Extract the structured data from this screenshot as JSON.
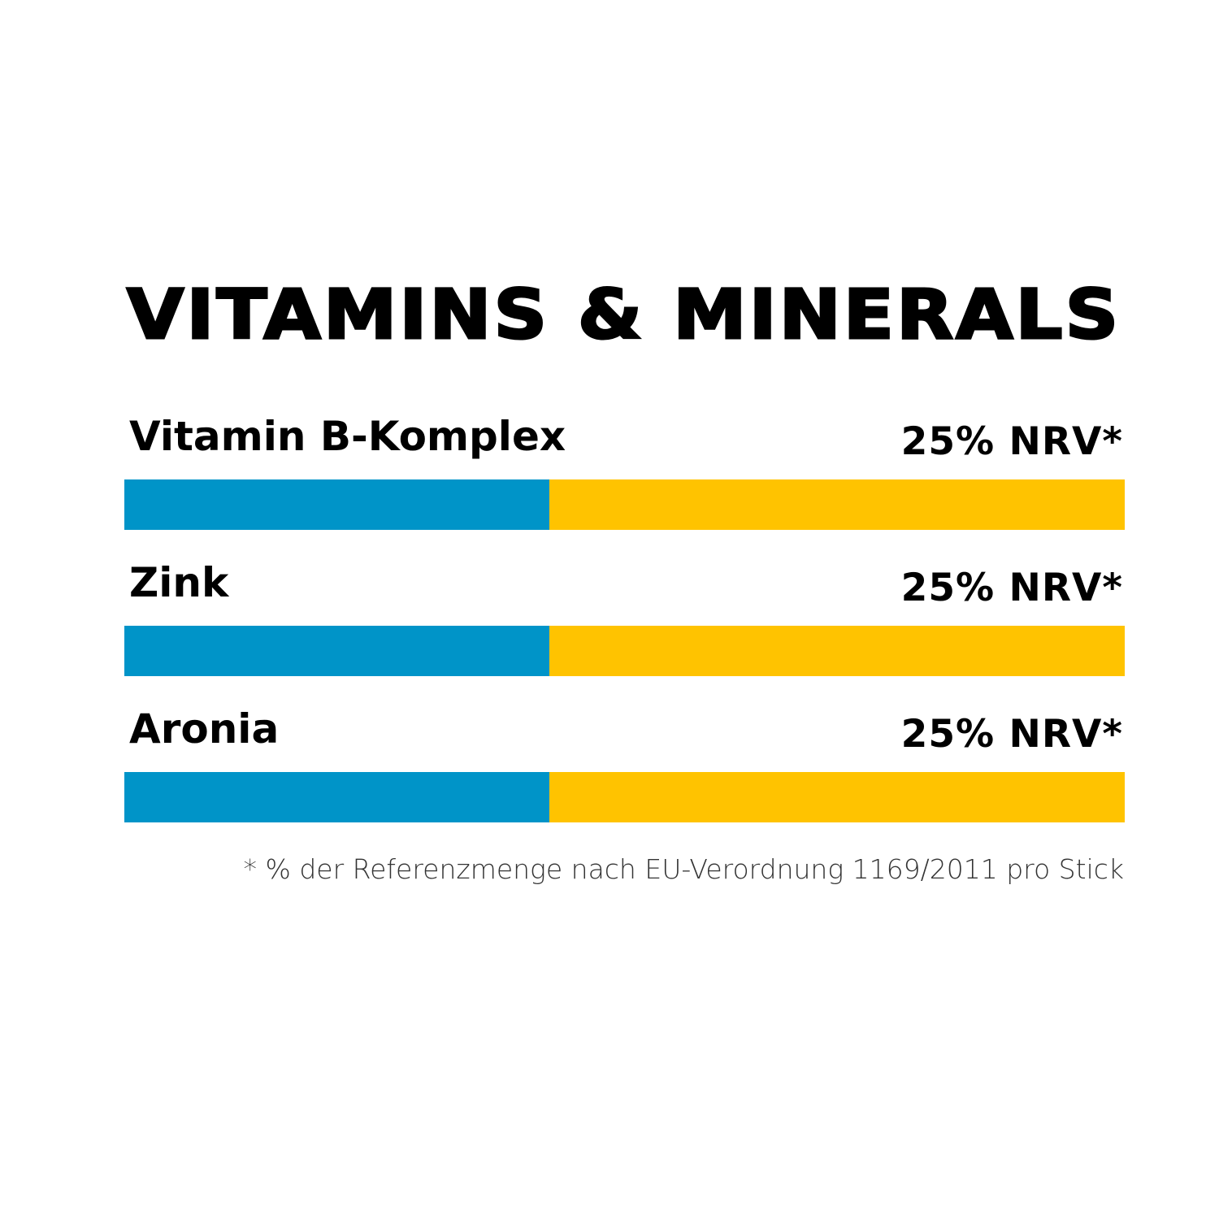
{
  "chart_data": {
    "type": "bar",
    "title": "VITAMINS & MINERALS",
    "orientation": "horizontal",
    "colors": {
      "fill": "#0094C8",
      "track": "#FFC300"
    },
    "rows": [
      {
        "label": "Vitamin B-Komplex",
        "value_label": "25% NRV*",
        "value": 25,
        "fill_fraction": 0.425
      },
      {
        "label": "Zink",
        "value_label": "25% NRV*",
        "value": 25,
        "fill_fraction": 0.425
      },
      {
        "label": "Aronia",
        "value_label": "25% NRV*",
        "value": 25,
        "fill_fraction": 0.425
      }
    ],
    "footnote": "* % der Referenzmenge nach EU-Verordnung 1169/2011 pro Stick"
  }
}
